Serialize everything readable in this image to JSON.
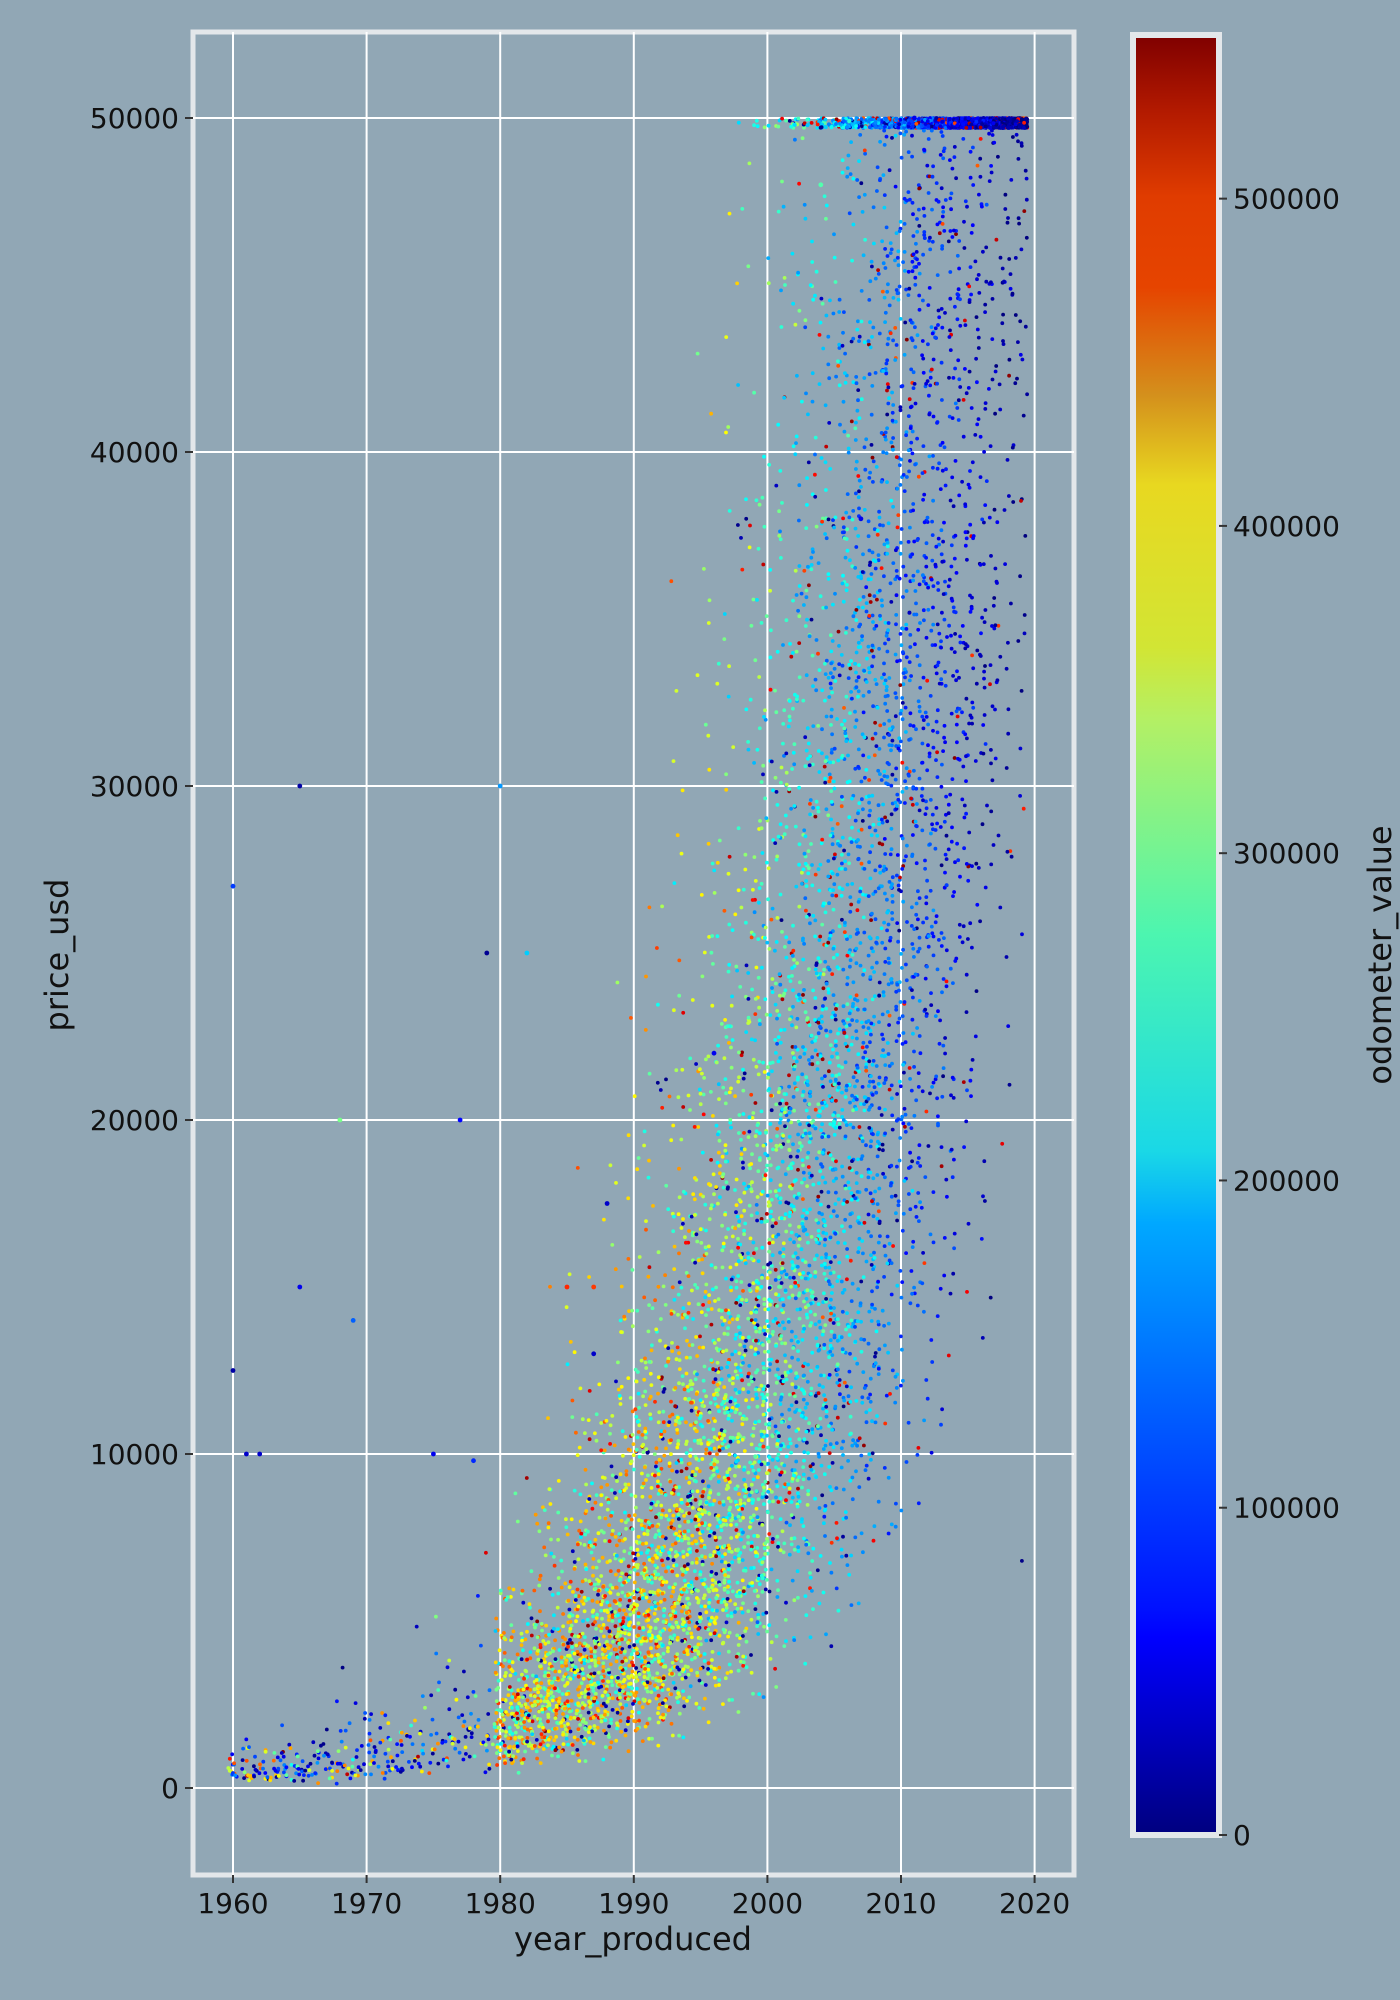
{
  "chart_data": {
    "type": "scatter",
    "xlabel": "year_produced",
    "ylabel": "price_usd",
    "colorbar_label": "odometer_value",
    "colormap": "jet",
    "xlim": [
      1957,
      2023
    ],
    "ylim": [
      -2300,
      52500
    ],
    "x_ticks": [
      1960,
      1970,
      1980,
      1990,
      2000,
      2010,
      2020
    ],
    "y_ticks": [
      0,
      10000,
      20000,
      30000,
      40000,
      50000
    ],
    "colorbar_range": [
      0,
      550000
    ],
    "colorbar_ticks": [
      0,
      100000,
      200000,
      300000,
      400000,
      500000
    ],
    "grid": true,
    "background_color": "#91a7b5",
    "grid_color": "#ffffff",
    "frame_color": "#e3e7ea",
    "notable_points": [
      {
        "x": 1965,
        "y": 30000,
        "odometer": 20000
      },
      {
        "x": 1980,
        "y": 30000,
        "odometer": 150000
      },
      {
        "x": 1960,
        "y": 27000,
        "odometer": 100000
      },
      {
        "x": 1979,
        "y": 25000,
        "odometer": 10000
      },
      {
        "x": 1982,
        "y": 25000,
        "odometer": 180000
      },
      {
        "x": 1968,
        "y": 20000,
        "odometer": 270000
      },
      {
        "x": 1977,
        "y": 20000,
        "odometer": 70000
      },
      {
        "x": 1988,
        "y": 17500,
        "odometer": 40000
      },
      {
        "x": 1965,
        "y": 15000,
        "odometer": 60000
      },
      {
        "x": 1985,
        "y": 15000,
        "odometer": 460000
      },
      {
        "x": 1987,
        "y": 15000,
        "odometer": 450000
      },
      {
        "x": 1969,
        "y": 14000,
        "odometer": 120000
      },
      {
        "x": 1960,
        "y": 12500,
        "odometer": 20000
      },
      {
        "x": 1987,
        "y": 13000,
        "odometer": 40000
      },
      {
        "x": 1996,
        "y": 22000,
        "odometer": 60000
      },
      {
        "x": 2004,
        "y": 48000,
        "odometer": 250000
      },
      {
        "x": 2007,
        "y": 38000,
        "odometer": 60000
      },
      {
        "x": 2011,
        "y": 50000,
        "odometer": 60000
      },
      {
        "x": 1961,
        "y": 10000,
        "odometer": 40000
      },
      {
        "x": 1962,
        "y": 10000,
        "odometer": 40000
      },
      {
        "x": 1975,
        "y": 10000,
        "odometer": 60000
      },
      {
        "x": 1978,
        "y": 9800,
        "odometer": 90000
      }
    ],
    "series": [
      {
        "year_range": [
          1960,
          1979
        ],
        "price_range": [
          300,
          8000
        ],
        "density": "sparse"
      },
      {
        "year_range": [
          1980,
          1990
        ],
        "price_range": [
          200,
          5000
        ],
        "odometer_range": [
          250000,
          500000
        ]
      },
      {
        "year_range": [
          1990,
          2000
        ],
        "price_range": [
          200,
          9000
        ],
        "odometer_range": [
          250000,
          450000
        ]
      },
      {
        "year_range": [
          2000,
          2010
        ],
        "price_range": [
          300,
          20000
        ],
        "odometer_range": [
          150000,
          320000
        ]
      },
      {
        "year_range": [
          2010,
          2020
        ],
        "price_range": [
          500,
          50000
        ],
        "odometer_range": [
          0,
          180000
        ]
      }
    ]
  }
}
